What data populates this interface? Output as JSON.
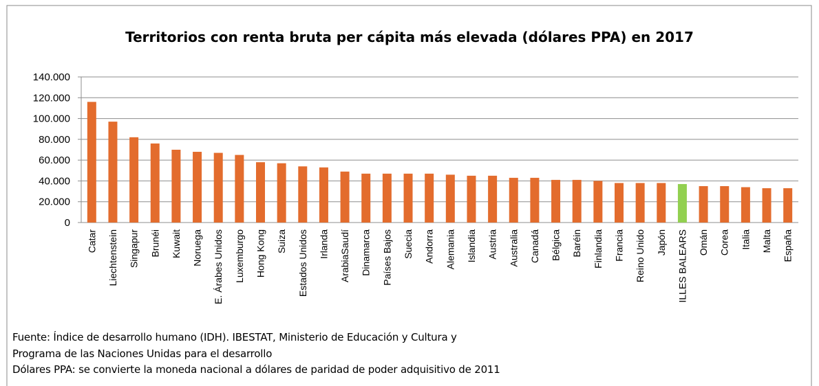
{
  "chart_data": {
    "type": "bar",
    "title": "Territorios con renta bruta per cápita más elevada (dólares PPA) en 2017",
    "categories": [
      "Catar",
      "Liechtenstein",
      "Singapur",
      "Brunéi",
      "Kuwait",
      "Noruega",
      "E. Árabes Unidos",
      "Luxemburgo",
      "Hong Kong",
      "Suiza",
      "Estados Unidos",
      "Irlanda",
      "ArabiaSaudí",
      "Dinamarca",
      "Países Bajos",
      "Suecia",
      "Andorra",
      "Alemania",
      "Islandia",
      "Austria",
      "Australia",
      "Canadá",
      "Bélgica",
      "Baréin",
      "Finlandia",
      "Francia",
      "Reino Unido",
      "Japón",
      "ILLES BALEARS",
      "Omán",
      "Corea",
      "Italia",
      "Malta",
      "España"
    ],
    "values": [
      116000,
      97000,
      82000,
      76000,
      70000,
      68000,
      67000,
      65000,
      58000,
      57000,
      54000,
      53000,
      49000,
      47000,
      47000,
      47000,
      47000,
      46000,
      45000,
      45000,
      43000,
      43000,
      41000,
      41000,
      40000,
      38000,
      38000,
      38000,
      37000,
      35000,
      35000,
      34000,
      33000,
      33000
    ],
    "colors": [
      "#e36c2d",
      "#e36c2d",
      "#e36c2d",
      "#e36c2d",
      "#e36c2d",
      "#e36c2d",
      "#e36c2d",
      "#e36c2d",
      "#e36c2d",
      "#e36c2d",
      "#e36c2d",
      "#e36c2d",
      "#e36c2d",
      "#e36c2d",
      "#e36c2d",
      "#e36c2d",
      "#e36c2d",
      "#e36c2d",
      "#e36c2d",
      "#e36c2d",
      "#e36c2d",
      "#e36c2d",
      "#e36c2d",
      "#e36c2d",
      "#e36c2d",
      "#e36c2d",
      "#e36c2d",
      "#e36c2d",
      "#92d050",
      "#e36c2d",
      "#e36c2d",
      "#e36c2d",
      "#e36c2d",
      "#e36c2d"
    ],
    "ylim": [
      0,
      140000
    ],
    "yticks": [
      0,
      {
        "value": 20000,
        "label": "20.000"
      },
      {
        "value": 40000,
        "label": "40.000"
      },
      {
        "value": 60000,
        "label": "60.000"
      },
      {
        "value": 80000,
        "label": "80.000"
      },
      {
        "value": 100000,
        "label": "100.000"
      },
      {
        "value": 120000,
        "label": "120.000"
      },
      {
        "value": 140000,
        "label": "140.000"
      }
    ],
    "grid": true,
    "notes": [
      "Fuente: Índice de  desarrollo humano (IDH). IBESTAT, Ministerio de Educación y Cultura y",
      "Programa de las Naciones Unidas para el desarrollo",
      "Dólares PPA: se convierte la moneda nacional a dólares de paridad de poder adquisitivo de 2011"
    ]
  }
}
